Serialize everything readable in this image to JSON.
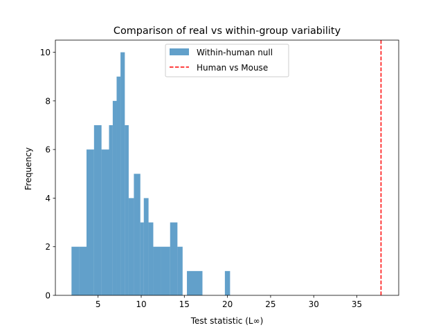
{
  "chart_data": {
    "type": "bar",
    "title": "Comparison of real vs within-group variability",
    "xlabel": "Test statistic (L∞)",
    "ylabel": "Frequency",
    "xlim": [
      0.05,
      39.85
    ],
    "ylim": [
      0,
      10.5
    ],
    "xticks": [
      5,
      10,
      15,
      20,
      25,
      30,
      35
    ],
    "yticks": [
      0,
      2,
      4,
      6,
      8,
      10
    ],
    "legend_position": "upper center",
    "grid": false,
    "histogram": {
      "name": "Within-human null",
      "color": "#1f77b4",
      "alpha": 0.7,
      "bins": [
        {
          "x0": 1.92,
          "x1": 2.79,
          "count": 2
        },
        {
          "x0": 2.79,
          "x1": 3.66,
          "count": 2
        },
        {
          "x0": 3.66,
          "x1": 4.53,
          "count": 6
        },
        {
          "x0": 4.53,
          "x1": 5.4,
          "count": 7
        },
        {
          "x0": 5.4,
          "x1": 6.27,
          "count": 6
        },
        {
          "x0": 6.27,
          "x1": 6.7,
          "count": 7
        },
        {
          "x0": 6.7,
          "x1": 7.15,
          "count": 8
        },
        {
          "x0": 7.15,
          "x1": 7.6,
          "count": 9
        },
        {
          "x0": 7.6,
          "x1": 8.1,
          "count": 10
        },
        {
          "x0": 8.1,
          "x1": 8.55,
          "count": 7
        },
        {
          "x0": 8.55,
          "x1": 9.15,
          "count": 4
        },
        {
          "x0": 9.15,
          "x1": 9.9,
          "count": 5
        },
        {
          "x0": 9.9,
          "x1": 10.3,
          "count": 3
        },
        {
          "x0": 10.3,
          "x1": 10.85,
          "count": 4
        },
        {
          "x0": 10.85,
          "x1": 11.4,
          "count": 3
        },
        {
          "x0": 11.4,
          "x1": 12.25,
          "count": 2
        },
        {
          "x0": 12.25,
          "x1": 13.35,
          "count": 2
        },
        {
          "x0": 13.35,
          "x1": 14.2,
          "count": 3
        },
        {
          "x0": 14.2,
          "x1": 14.8,
          "count": 2
        },
        {
          "x0": 15.3,
          "x1": 17.1,
          "count": 1
        },
        {
          "x0": 19.7,
          "x1": 20.3,
          "count": 1
        }
      ]
    },
    "reference_line": {
      "name": "Human vs Mouse",
      "x": 37.8,
      "color": "#ff0000",
      "style": "dashed"
    }
  }
}
